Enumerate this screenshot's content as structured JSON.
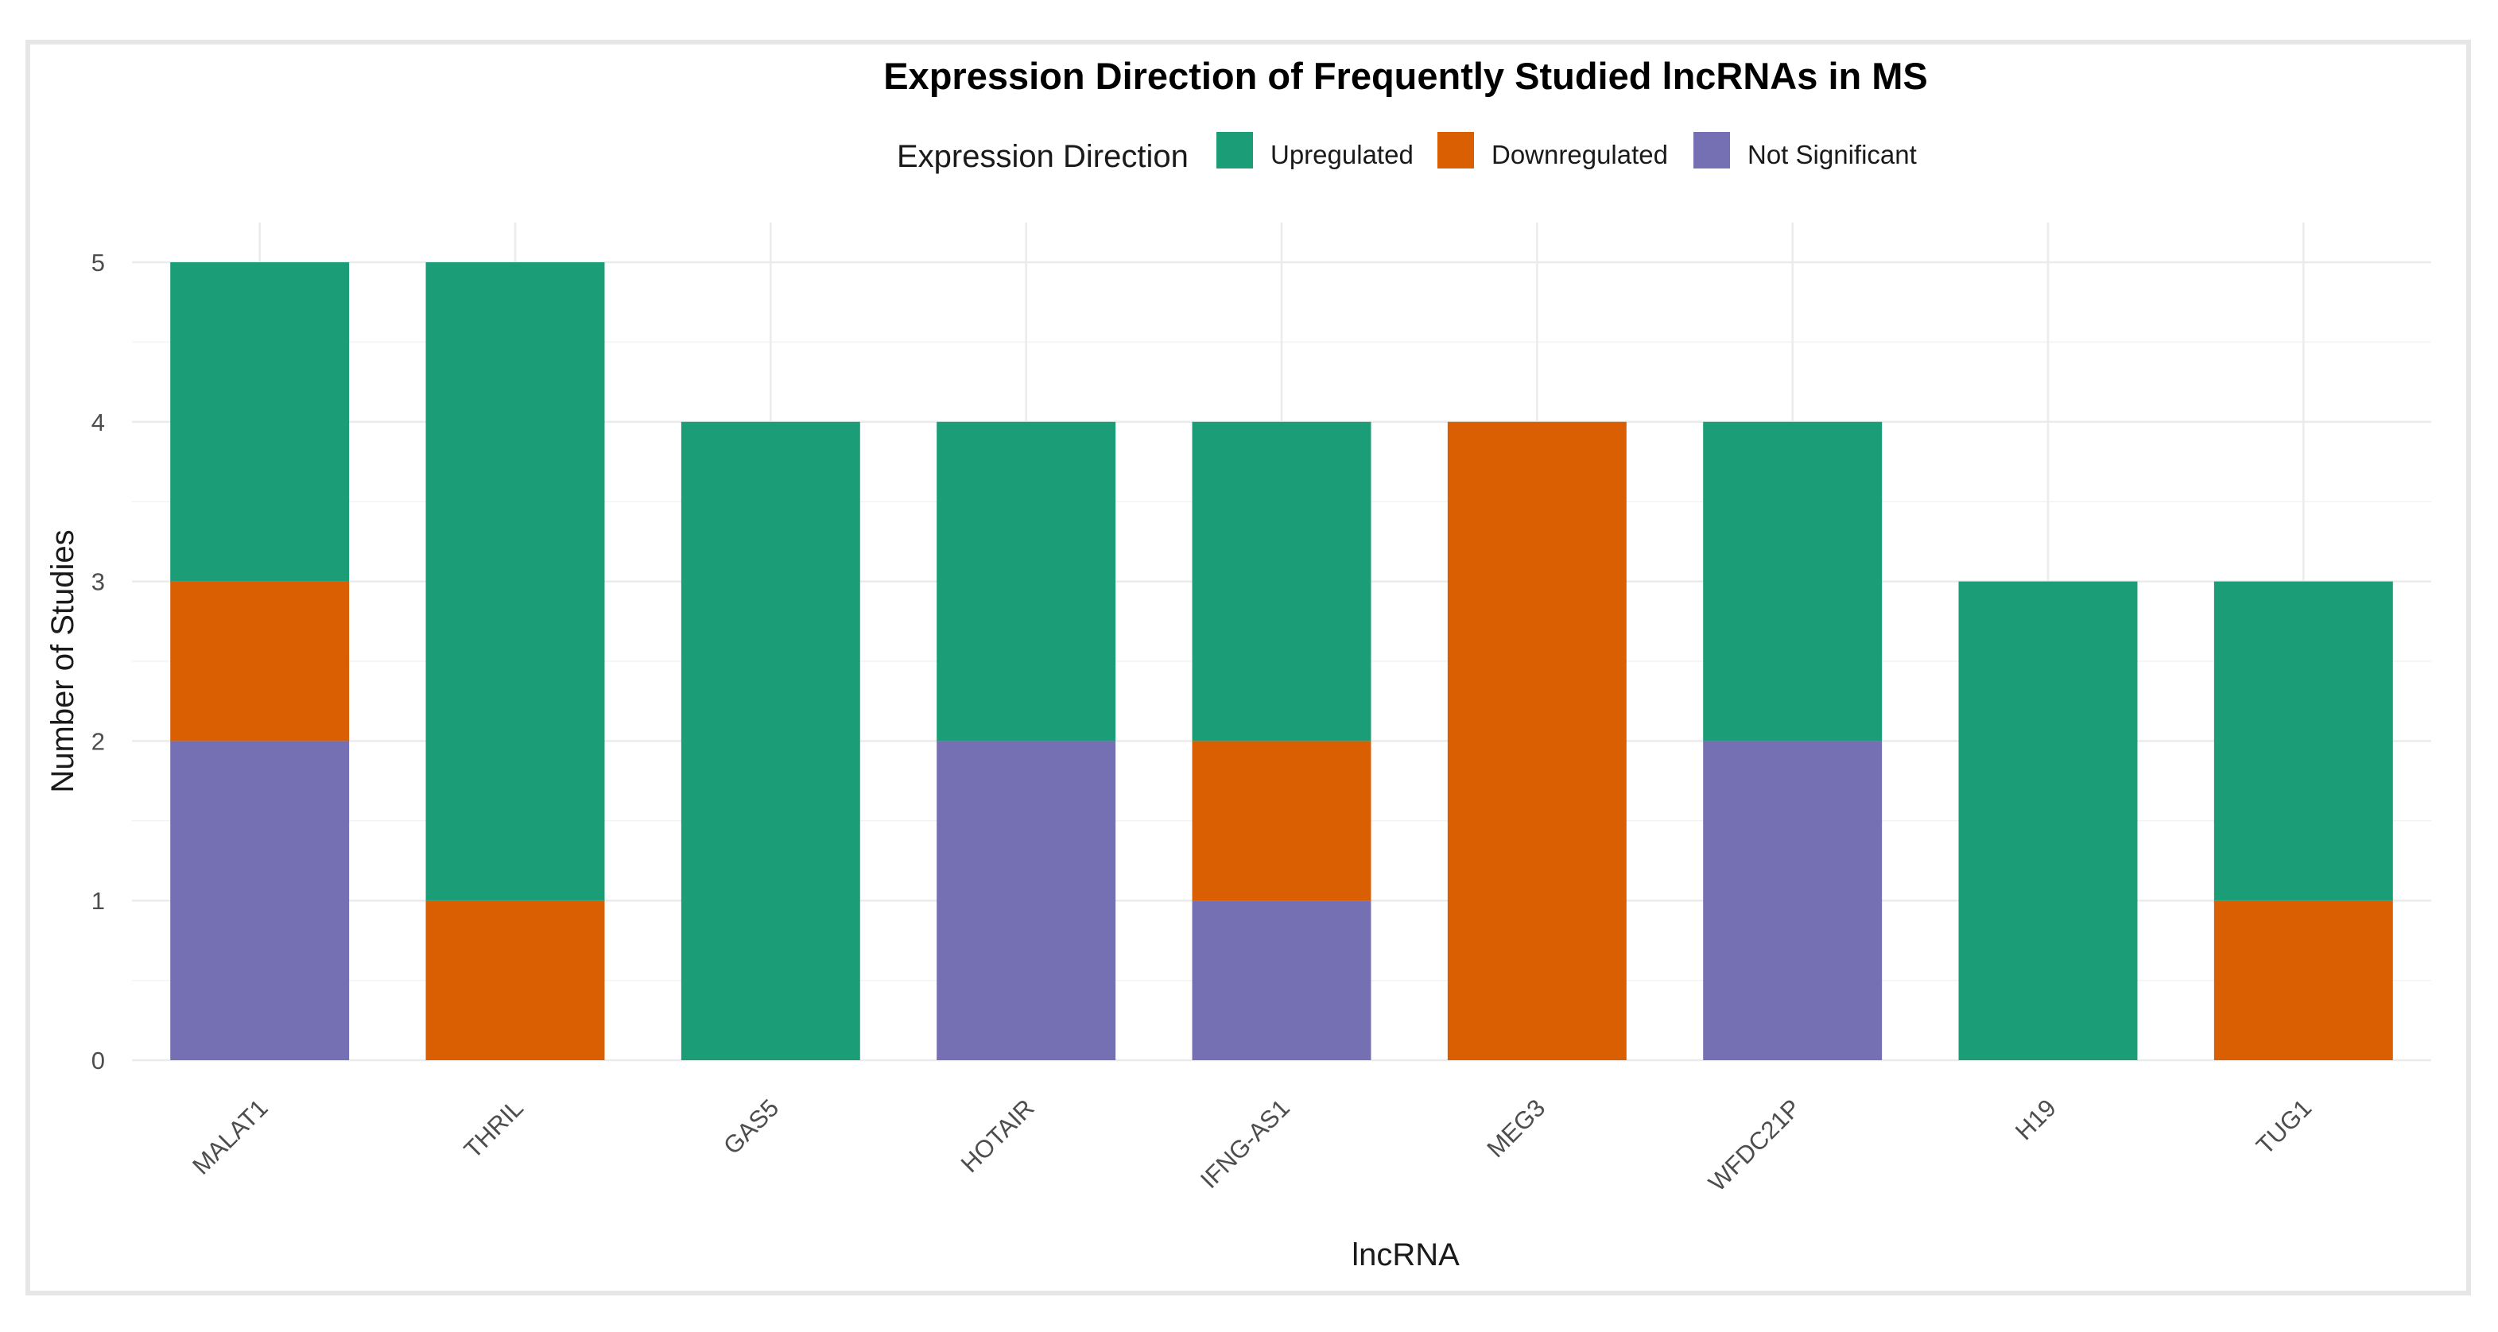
{
  "chart_data": {
    "type": "bar",
    "stacked": true,
    "title": "Expression Direction of Frequently Studied lncRNAs in MS",
    "xlabel": "lncRNA",
    "ylabel": "Number of Studies",
    "ylim": [
      0,
      5
    ],
    "yticks": [
      0,
      1,
      2,
      3,
      4,
      5
    ],
    "legend": {
      "title": "Expression Direction",
      "position": "top"
    },
    "categories": [
      "MALAT1",
      "THRIL",
      "GAS5",
      "HOTAIR",
      "IFNG-AS1",
      "MEG3",
      "WFDC21P",
      "H19",
      "TUG1"
    ],
    "series": [
      {
        "name": "Upregulated",
        "color": "#1b9e77",
        "values": [
          2,
          4,
          4,
          2,
          2,
          0,
          2,
          3,
          2
        ]
      },
      {
        "name": "Downregulated",
        "color": "#d95f02",
        "values": [
          1,
          1,
          0,
          0,
          1,
          4,
          0,
          0,
          1
        ]
      },
      {
        "name": "Not Significant",
        "color": "#7570b3",
        "values": [
          2,
          0,
          0,
          2,
          1,
          0,
          2,
          0,
          0
        ]
      }
    ],
    "stack_order_bottom_to_top": [
      "Not Significant",
      "Downregulated",
      "Upregulated"
    ]
  }
}
